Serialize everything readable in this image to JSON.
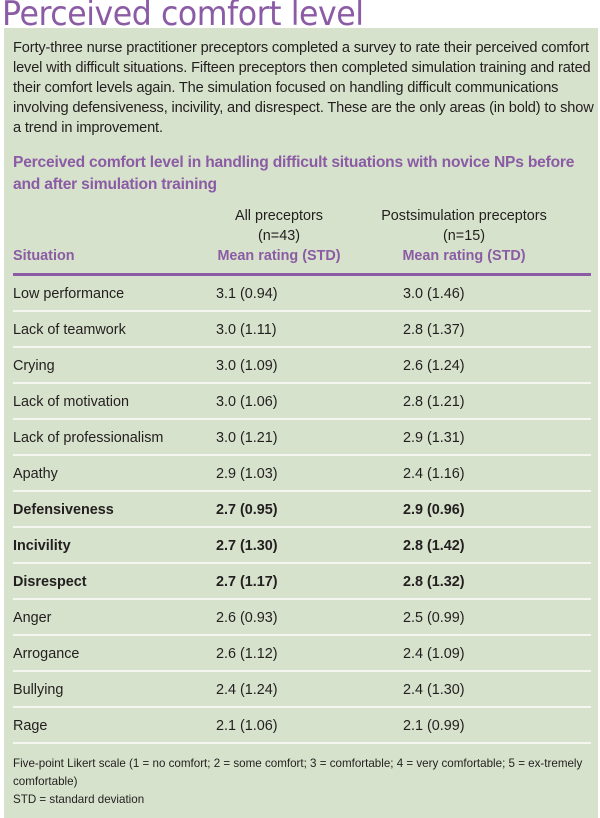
{
  "title": "Perceived comfort level",
  "intro": "Forty-three nurse practitioner preceptors completed a survey to rate their perceived comfort level with difficult situations. Fifteen preceptors then completed simulation training and rated their comfort levels again. The simulation focused on handling difficult communications involving defensiveness, incivility, and disrespect. These are the only areas (in bold) to show a trend in improvement.",
  "table": {
    "title": "Perceived comfort level in handling difficult situations with novice NPs before and after simulation training",
    "headers": {
      "situation": "Situation",
      "col1": {
        "group": "All preceptors",
        "n": "(n=43)",
        "measure": "Mean rating (STD)"
      },
      "col2": {
        "group": "Postsimulation preceptors",
        "n": "(n=15)",
        "measure": "Mean rating (STD)"
      }
    },
    "rows": [
      {
        "situation": "Low performance",
        "all": "3.1 (0.94)",
        "post": "3.0 (1.46)",
        "bold": false
      },
      {
        "situation": "Lack of teamwork",
        "all": "3.0 (1.11)",
        "post": "2.8 (1.37)",
        "bold": false
      },
      {
        "situation": "Crying",
        "all": "3.0 (1.09)",
        "post": "2.6 (1.24)",
        "bold": false
      },
      {
        "situation": "Lack of motivation",
        "all": "3.0 (1.06)",
        "post": "2.8 (1.21)",
        "bold": false
      },
      {
        "situation": "Lack of professionalism",
        "all": "3.0 (1.21)",
        "post": "2.9 (1.31)",
        "bold": false
      },
      {
        "situation": "Apathy",
        "all": "2.9 (1.03)",
        "post": "2.4 (1.16)",
        "bold": false
      },
      {
        "situation": "Defensiveness",
        "all": "2.7 (0.95)",
        "post": "2.9 (0.96)",
        "bold": true
      },
      {
        "situation": "Incivility",
        "all": "2.7 (1.30)",
        "post": "2.8 (1.42)",
        "bold": true
      },
      {
        "situation": "Disrespect",
        "all": "2.7 (1.17)",
        "post": "2.8 (1.32)",
        "bold": true
      },
      {
        "situation": "Anger",
        "all": "2.6 (0.93)",
        "post": "2.5 (0.99)",
        "bold": false
      },
      {
        "situation": "Arrogance",
        "all": "2.6 (1.12)",
        "post": "2.4 (1.09)",
        "bold": false
      },
      {
        "situation": "Bullying",
        "all": "2.4 (1.24)",
        "post": "2.4 (1.30)",
        "bold": false
      },
      {
        "situation": "Rage",
        "all": "2.1 (1.06)",
        "post": "2.1 (0.99)",
        "bold": false
      }
    ]
  },
  "footnotes": {
    "scale": "Five-point Likert scale (1 = no comfort; 2 = some comfort; 3 = comfortable; 4 = very comfortable; 5 = ex-tremely comfortable)",
    "std": "STD = standard deviation"
  },
  "colors": {
    "accent_purple": "#8b5ca5",
    "panel_green": "#d6e2cb",
    "row_separator": "#f4f7f0",
    "text": "#231f20"
  }
}
